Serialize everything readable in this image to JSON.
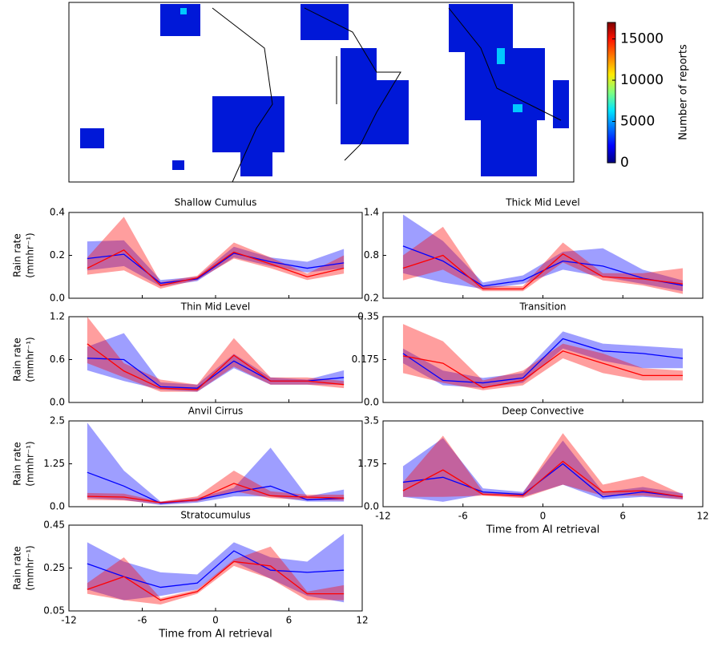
{
  "chart_data": [
    {
      "type": "heatmap",
      "colorbar": {
        "label": "Number of reports",
        "lim": [
          0,
          17000
        ],
        "ticks": [
          0,
          5000,
          10000,
          15000
        ]
      }
    },
    {
      "type": "line",
      "title": "Shallow Cumulus",
      "ylabel": [
        "Rain rate",
        "(mmhr⁻¹)"
      ],
      "x": [
        -10.5,
        -7.5,
        -4.5,
        -1.5,
        1.5,
        4.5,
        7.5,
        10.5
      ],
      "xlim": [
        -12,
        12
      ],
      "xticks": [
        -12,
        -6,
        0,
        6,
        12
      ],
      "ylim": [
        0,
        0.4
      ],
      "yticks": [
        {
          "value": 0,
          "label": "0.0"
        },
        0.2,
        0.4
      ],
      "series": [
        {
          "color": "#0000ff",
          "values": [
            0.185,
            0.205,
            0.07,
            0.09,
            0.21,
            0.17,
            0.14,
            0.165
          ],
          "lower": [
            0.13,
            0.15,
            0.055,
            0.08,
            0.19,
            0.15,
            0.12,
            0.14
          ],
          "upper": [
            0.265,
            0.27,
            0.085,
            0.1,
            0.24,
            0.19,
            0.17,
            0.23
          ]
        },
        {
          "color": "#ff0000",
          "values": [
            0.14,
            0.225,
            0.06,
            0.095,
            0.215,
            0.16,
            0.1,
            0.14
          ],
          "lower": [
            0.11,
            0.13,
            0.045,
            0.085,
            0.185,
            0.14,
            0.085,
            0.115
          ],
          "upper": [
            0.19,
            0.38,
            0.075,
            0.105,
            0.26,
            0.19,
            0.115,
            0.2
          ]
        }
      ]
    },
    {
      "type": "line",
      "title": "Thick Mid Level",
      "x": [
        -10.5,
        -7.5,
        -4.5,
        -1.5,
        1.5,
        4.5,
        7.5,
        10.5
      ],
      "xlim": [
        -12,
        12
      ],
      "xticks": [
        -12,
        -6,
        0,
        6,
        12
      ],
      "ylim": [
        0.2,
        1.4
      ],
      "yticks": [
        0.2,
        0.8,
        1.4
      ],
      "series": [
        {
          "color": "#0000ff",
          "values": [
            0.93,
            0.72,
            0.37,
            0.45,
            0.72,
            0.65,
            0.48,
            0.38
          ],
          "lower": [
            0.55,
            0.42,
            0.33,
            0.4,
            0.6,
            0.5,
            0.4,
            0.3
          ],
          "upper": [
            1.37,
            1.0,
            0.42,
            0.52,
            0.85,
            0.9,
            0.6,
            0.45
          ]
        },
        {
          "color": "#ff0000",
          "values": [
            0.62,
            0.8,
            0.33,
            0.33,
            0.82,
            0.5,
            0.47,
            0.4
          ],
          "lower": [
            0.45,
            0.6,
            0.3,
            0.3,
            0.7,
            0.45,
            0.38,
            0.26
          ],
          "upper": [
            0.8,
            1.2,
            0.37,
            0.37,
            0.98,
            0.55,
            0.55,
            0.62
          ]
        }
      ]
    },
    {
      "type": "line",
      "title": "Thin Mid Level",
      "ylabel": [
        "Rain rate",
        "(mmhr⁻¹)"
      ],
      "x": [
        -10.5,
        -7.5,
        -4.5,
        -1.5,
        1.5,
        4.5,
        7.5,
        10.5
      ],
      "xlim": [
        -12,
        12
      ],
      "xticks": [
        -12,
        -6,
        0,
        6,
        12
      ],
      "ylim": [
        0,
        1.2
      ],
      "yticks": [
        {
          "value": 0,
          "label": "0.0"
        },
        0.6,
        1.2
      ],
      "series": [
        {
          "color": "#0000ff",
          "values": [
            0.62,
            0.6,
            0.22,
            0.2,
            0.58,
            0.3,
            0.3,
            0.35
          ],
          "lower": [
            0.45,
            0.3,
            0.18,
            0.15,
            0.48,
            0.25,
            0.25,
            0.25
          ],
          "upper": [
            0.78,
            0.97,
            0.28,
            0.25,
            0.68,
            0.35,
            0.32,
            0.45
          ]
        },
        {
          "color": "#ff0000",
          "values": [
            0.82,
            0.44,
            0.2,
            0.18,
            0.66,
            0.3,
            0.3,
            0.25
          ],
          "lower": [
            0.55,
            0.35,
            0.15,
            0.15,
            0.5,
            0.25,
            0.25,
            0.2
          ],
          "upper": [
            1.2,
            0.55,
            0.32,
            0.25,
            0.9,
            0.35,
            0.35,
            0.3
          ]
        }
      ]
    },
    {
      "type": "line",
      "title": "Transition",
      "x": [
        -10.5,
        -7.5,
        -4.5,
        -1.5,
        1.5,
        4.5,
        7.5,
        10.5
      ],
      "xlim": [
        -12,
        12
      ],
      "xticks": [
        -12,
        -6,
        0,
        6,
        12
      ],
      "ylim": [
        0,
        0.35
      ],
      "yticks": [
        {
          "value": 0,
          "label": "0.0"
        },
        0.175,
        0.35
      ],
      "series": [
        {
          "color": "#0000ff",
          "values": [
            0.2,
            0.09,
            0.08,
            0.1,
            0.26,
            0.21,
            0.2,
            0.18
          ],
          "lower": [
            0.16,
            0.07,
            0.06,
            0.08,
            0.22,
            0.17,
            0.14,
            0.14
          ],
          "upper": [
            0.22,
            0.13,
            0.1,
            0.12,
            0.29,
            0.24,
            0.23,
            0.22
          ]
        },
        {
          "color": "#ff0000",
          "values": [
            0.19,
            0.16,
            0.06,
            0.09,
            0.21,
            0.16,
            0.11,
            0.11
          ],
          "lower": [
            0.12,
            0.08,
            0.05,
            0.07,
            0.18,
            0.12,
            0.09,
            0.09
          ],
          "upper": [
            0.32,
            0.25,
            0.09,
            0.13,
            0.24,
            0.2,
            0.14,
            0.13
          ]
        }
      ]
    },
    {
      "type": "line",
      "title": "Anvil Cirrus",
      "ylabel": [
        "Rain rate",
        "(mmhr⁻¹)"
      ],
      "x": [
        -10.5,
        -7.5,
        -4.5,
        -1.5,
        1.5,
        4.5,
        7.5,
        10.5
      ],
      "xlim": [
        -12,
        12
      ],
      "xticks": [
        -12,
        -6,
        0,
        6,
        12
      ],
      "ylim": [
        0,
        2.5
      ],
      "yticks": [
        {
          "value": 0,
          "label": "0.0"
        },
        1.25,
        2.5
      ],
      "series": [
        {
          "color": "#0000ff",
          "values": [
            1.0,
            0.6,
            0.1,
            0.2,
            0.42,
            0.6,
            0.2,
            0.25
          ],
          "lower": [
            0.25,
            0.2,
            0.05,
            0.12,
            0.3,
            0.3,
            0.15,
            0.15
          ],
          "upper": [
            2.45,
            1.05,
            0.15,
            0.25,
            0.55,
            1.72,
            0.3,
            0.5
          ]
        },
        {
          "color": "#ff0000",
          "values": [
            0.3,
            0.28,
            0.12,
            0.2,
            0.68,
            0.32,
            0.28,
            0.25
          ],
          "lower": [
            0.2,
            0.18,
            0.08,
            0.15,
            0.45,
            0.25,
            0.2,
            0.18
          ],
          "upper": [
            0.4,
            0.38,
            0.15,
            0.3,
            1.05,
            0.45,
            0.35,
            0.35
          ]
        }
      ]
    },
    {
      "type": "line",
      "title": "Deep Convective",
      "xlabel": "Time from AI retrieval",
      "x": [
        -10.5,
        -7.5,
        -4.5,
        -1.5,
        1.5,
        4.5,
        7.5,
        10.5
      ],
      "xlim": [
        -12,
        12
      ],
      "xticks": [
        -12,
        -6,
        0,
        6,
        12
      ],
      "ylim": [
        0,
        3.5
      ],
      "yticks": [
        {
          "value": 0,
          "label": "0.0"
        },
        1.75,
        3.5
      ],
      "series": [
        {
          "color": "#0000ff",
          "values": [
            1.0,
            1.2,
            0.6,
            0.5,
            1.75,
            0.4,
            0.6,
            0.4
          ],
          "lower": [
            0.4,
            0.2,
            0.5,
            0.4,
            0.9,
            0.3,
            0.4,
            0.3
          ],
          "upper": [
            1.65,
            2.8,
            0.75,
            0.6,
            2.7,
            0.6,
            0.8,
            0.55
          ]
        },
        {
          "color": "#ff0000",
          "values": [
            0.65,
            1.5,
            0.5,
            0.45,
            1.85,
            0.6,
            0.65,
            0.4
          ],
          "lower": [
            0.4,
            0.4,
            0.45,
            0.35,
            0.9,
            0.45,
            0.45,
            0.3
          ],
          "upper": [
            1.0,
            2.9,
            0.6,
            0.55,
            3.0,
            0.9,
            1.25,
            0.5
          ]
        }
      ]
    },
    {
      "type": "line",
      "title": "Stratocumulus",
      "ylabel": [
        "Rain rate",
        "(mmhr⁻¹)"
      ],
      "xlabel": "Time from AI retrieval",
      "x": [
        -10.5,
        -7.5,
        -4.5,
        -1.5,
        1.5,
        4.5,
        7.5,
        10.5
      ],
      "xlim": [
        -12,
        12
      ],
      "xticks": [
        -12,
        -6,
        0,
        6,
        12
      ],
      "ylim": [
        0.05,
        0.45
      ],
      "yticks": [
        0.05,
        0.25,
        0.45
      ],
      "series": [
        {
          "color": "#0000ff",
          "values": [
            0.27,
            0.21,
            0.16,
            0.18,
            0.33,
            0.24,
            0.23,
            0.24
          ],
          "lower": [
            0.15,
            0.1,
            0.12,
            0.15,
            0.28,
            0.2,
            0.12,
            0.09
          ],
          "upper": [
            0.37,
            0.28,
            0.23,
            0.22,
            0.37,
            0.3,
            0.28,
            0.41
          ]
        },
        {
          "color": "#ff0000",
          "values": [
            0.15,
            0.21,
            0.1,
            0.14,
            0.28,
            0.26,
            0.13,
            0.13
          ],
          "lower": [
            0.13,
            0.1,
            0.08,
            0.13,
            0.26,
            0.2,
            0.1,
            0.1
          ],
          "upper": [
            0.18,
            0.3,
            0.11,
            0.15,
            0.29,
            0.35,
            0.14,
            0.17
          ]
        }
      ]
    }
  ]
}
